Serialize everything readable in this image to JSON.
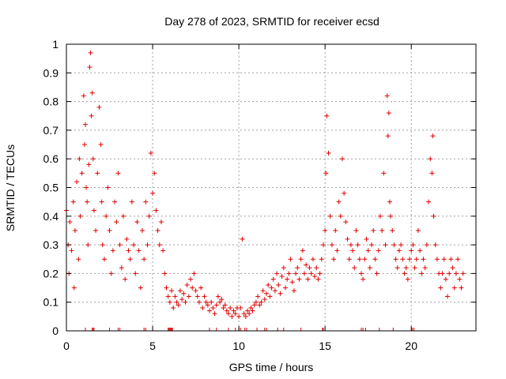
{
  "chart_data": {
    "type": "scatter",
    "title": "Day 278 of 2023, SRMTID for receiver ecsd",
    "xlabel": "GPS time / hours",
    "ylabel": "SRMTID / TECUs",
    "xlim": [
      0,
      23.75
    ],
    "ylim": [
      0,
      1
    ],
    "xticks": [
      0,
      5,
      10,
      15,
      20
    ],
    "xtick_labels": [
      "0",
      "5",
      "10",
      "15",
      "20"
    ],
    "yticks": [
      0,
      0.1,
      0.2,
      0.3,
      0.4,
      0.5,
      0.6,
      0.7,
      0.8,
      0.9,
      1
    ],
    "ytick_labels": [
      "0",
      "0.1",
      "0.2",
      "0.3",
      "0.4",
      "0.5",
      "0.6",
      "0.7",
      "0.8",
      "0.9",
      "1"
    ],
    "grid": true,
    "marker": "+",
    "color": "#e00000",
    "series": [
      {
        "name": "SRMTID",
        "x": [
          0.0,
          0.1,
          0.15,
          0.2,
          0.3,
          0.4,
          0.45,
          0.5,
          0.6,
          0.7,
          0.75,
          0.8,
          0.9,
          1.0,
          1.05,
          1.1,
          1.15,
          1.2,
          1.25,
          1.3,
          1.35,
          1.4,
          1.45,
          1.5,
          1.55,
          1.6,
          1.7,
          1.8,
          1.9,
          2.0,
          2.05,
          2.1,
          2.2,
          2.3,
          2.4,
          2.5,
          2.6,
          2.7,
          2.8,
          2.9,
          3.0,
          3.1,
          3.2,
          3.3,
          3.4,
          3.5,
          3.6,
          3.7,
          3.8,
          3.9,
          4.0,
          4.1,
          4.2,
          4.3,
          4.4,
          4.5,
          4.6,
          4.7,
          4.8,
          4.9,
          5.0,
          5.1,
          5.2,
          5.3,
          5.4,
          5.5,
          5.6,
          5.7,
          5.8,
          5.9,
          6.0,
          6.1,
          6.2,
          6.3,
          6.4,
          6.5,
          6.6,
          6.7,
          6.8,
          6.9,
          7.0,
          7.1,
          7.2,
          7.3,
          7.4,
          7.5,
          7.6,
          7.7,
          7.8,
          7.9,
          8.0,
          8.1,
          8.2,
          8.3,
          8.4,
          8.5,
          8.6,
          8.7,
          8.8,
          8.9,
          9.0,
          9.1,
          9.2,
          9.3,
          9.4,
          9.5,
          9.6,
          9.7,
          9.8,
          9.9,
          10.0,
          10.1,
          10.2,
          10.3,
          10.4,
          10.5,
          10.6,
          10.7,
          10.8,
          10.9,
          11.0,
          11.1,
          11.2,
          11.3,
          11.4,
          11.5,
          11.6,
          11.7,
          11.8,
          11.9,
          12.0,
          12.1,
          12.2,
          12.3,
          12.4,
          12.5,
          12.6,
          12.7,
          12.8,
          12.9,
          13.0,
          13.1,
          13.2,
          13.3,
          13.4,
          13.5,
          13.6,
          13.7,
          13.8,
          13.9,
          14.0,
          14.1,
          14.2,
          14.3,
          14.4,
          14.5,
          14.6,
          14.7,
          14.8,
          14.9,
          15.0,
          15.05,
          15.1,
          15.2,
          15.3,
          15.4,
          15.5,
          15.6,
          15.7,
          15.8,
          15.9,
          16.0,
          16.1,
          16.2,
          16.3,
          16.4,
          16.5,
          16.6,
          16.7,
          16.8,
          16.9,
          17.0,
          17.1,
          17.2,
          17.3,
          17.4,
          17.5,
          17.6,
          17.7,
          17.8,
          17.9,
          18.0,
          18.1,
          18.2,
          18.3,
          18.4,
          18.5,
          18.6,
          18.65,
          18.7,
          18.75,
          18.8,
          18.9,
          19.0,
          19.1,
          19.2,
          19.3,
          19.4,
          19.5,
          19.6,
          19.7,
          19.8,
          19.9,
          20.0,
          20.1,
          20.2,
          20.3,
          20.4,
          20.5,
          20.6,
          20.7,
          20.8,
          20.9,
          21.0,
          21.1,
          21.2,
          21.25,
          21.3,
          21.4,
          21.5,
          21.6,
          21.7,
          21.8,
          21.9,
          22.0,
          22.1,
          22.2,
          22.3,
          22.4,
          22.5,
          22.6,
          22.7,
          22.8,
          22.9,
          23.0
        ],
        "y": [
          0.42,
          0.3,
          0.2,
          0.38,
          0.28,
          0.45,
          0.15,
          0.35,
          0.52,
          0.25,
          0.6,
          0.4,
          0.55,
          0.82,
          0.65,
          0.72,
          0.5,
          0.45,
          0.3,
          0.58,
          0.92,
          0.97,
          0.75,
          0.83,
          0.6,
          0.42,
          0.35,
          0.55,
          0.78,
          0.65,
          0.45,
          0.3,
          0.25,
          0.4,
          0.5,
          0.35,
          0.2,
          0.28,
          0.45,
          0.38,
          0.55,
          0.3,
          0.22,
          0.4,
          0.18,
          0.32,
          0.28,
          0.25,
          0.45,
          0.3,
          0.2,
          0.38,
          0.28,
          0.15,
          0.35,
          0.25,
          0.45,
          0.3,
          0.4,
          0.62,
          0.48,
          0.55,
          0.42,
          0.35,
          0.3,
          0.38,
          0.28,
          0.2,
          0.15,
          0.12,
          0.1,
          0.14,
          0.08,
          0.12,
          0.1,
          0.09,
          0.14,
          0.11,
          0.13,
          0.1,
          0.16,
          0.12,
          0.18,
          0.15,
          0.2,
          0.14,
          0.12,
          0.1,
          0.15,
          0.08,
          0.12,
          0.1,
          0.09,
          0.07,
          0.1,
          0.08,
          0.06,
          0.09,
          0.12,
          0.1,
          0.11,
          0.08,
          0.09,
          0.07,
          0.06,
          0.08,
          0.05,
          0.07,
          0.06,
          0.08,
          0.05,
          0.08,
          0.32,
          0.06,
          0.05,
          0.07,
          0.06,
          0.08,
          0.07,
          0.09,
          0.1,
          0.12,
          0.09,
          0.1,
          0.14,
          0.11,
          0.13,
          0.16,
          0.12,
          0.15,
          0.18,
          0.14,
          0.2,
          0.16,
          0.13,
          0.19,
          0.22,
          0.15,
          0.18,
          0.2,
          0.25,
          0.17,
          0.14,
          0.2,
          0.22,
          0.18,
          0.25,
          0.28,
          0.2,
          0.23,
          0.18,
          0.22,
          0.2,
          0.25,
          0.19,
          0.22,
          0.18,
          0.2,
          0.25,
          0.3,
          0.35,
          0.55,
          0.75,
          0.62,
          0.4,
          0.3,
          0.25,
          0.35,
          0.28,
          0.45,
          0.4,
          0.6,
          0.48,
          0.38,
          0.32,
          0.25,
          0.3,
          0.28,
          0.22,
          0.35,
          0.3,
          0.25,
          0.2,
          0.18,
          0.25,
          0.32,
          0.28,
          0.22,
          0.3,
          0.35,
          0.25,
          0.2,
          0.28,
          0.4,
          0.35,
          0.55,
          0.3,
          0.82,
          0.68,
          0.76,
          0.45,
          0.4,
          0.35,
          0.3,
          0.25,
          0.22,
          0.28,
          0.3,
          0.25,
          0.2,
          0.22,
          0.18,
          0.25,
          0.28,
          0.3,
          0.22,
          0.25,
          0.35,
          0.28,
          0.2,
          0.25,
          0.22,
          0.3,
          0.45,
          0.6,
          0.55,
          0.68,
          0.4,
          0.3,
          0.25,
          0.2,
          0.15,
          0.2,
          0.25,
          0.18,
          0.12,
          0.2,
          0.25,
          0.22,
          0.15,
          0.2,
          0.25,
          0.18,
          0.15,
          0.2
        ],
        "bottom_marks_x": [
          1.1,
          1.5,
          1.55,
          1.6,
          2.5,
          3.0,
          3.1,
          4.5,
          4.6,
          5.9,
          5.95,
          6.0,
          6.05,
          6.1,
          6.15,
          8.3,
          8.7,
          9.4,
          9.8,
          10.0,
          10.1,
          10.35,
          10.45,
          11.05,
          11.5,
          11.6,
          12.25,
          12.6,
          13.6,
          14.85,
          14.9,
          17.1,
          17.2,
          17.35,
          18.15,
          18.95,
          20.05,
          20.15
        ]
      }
    ]
  }
}
